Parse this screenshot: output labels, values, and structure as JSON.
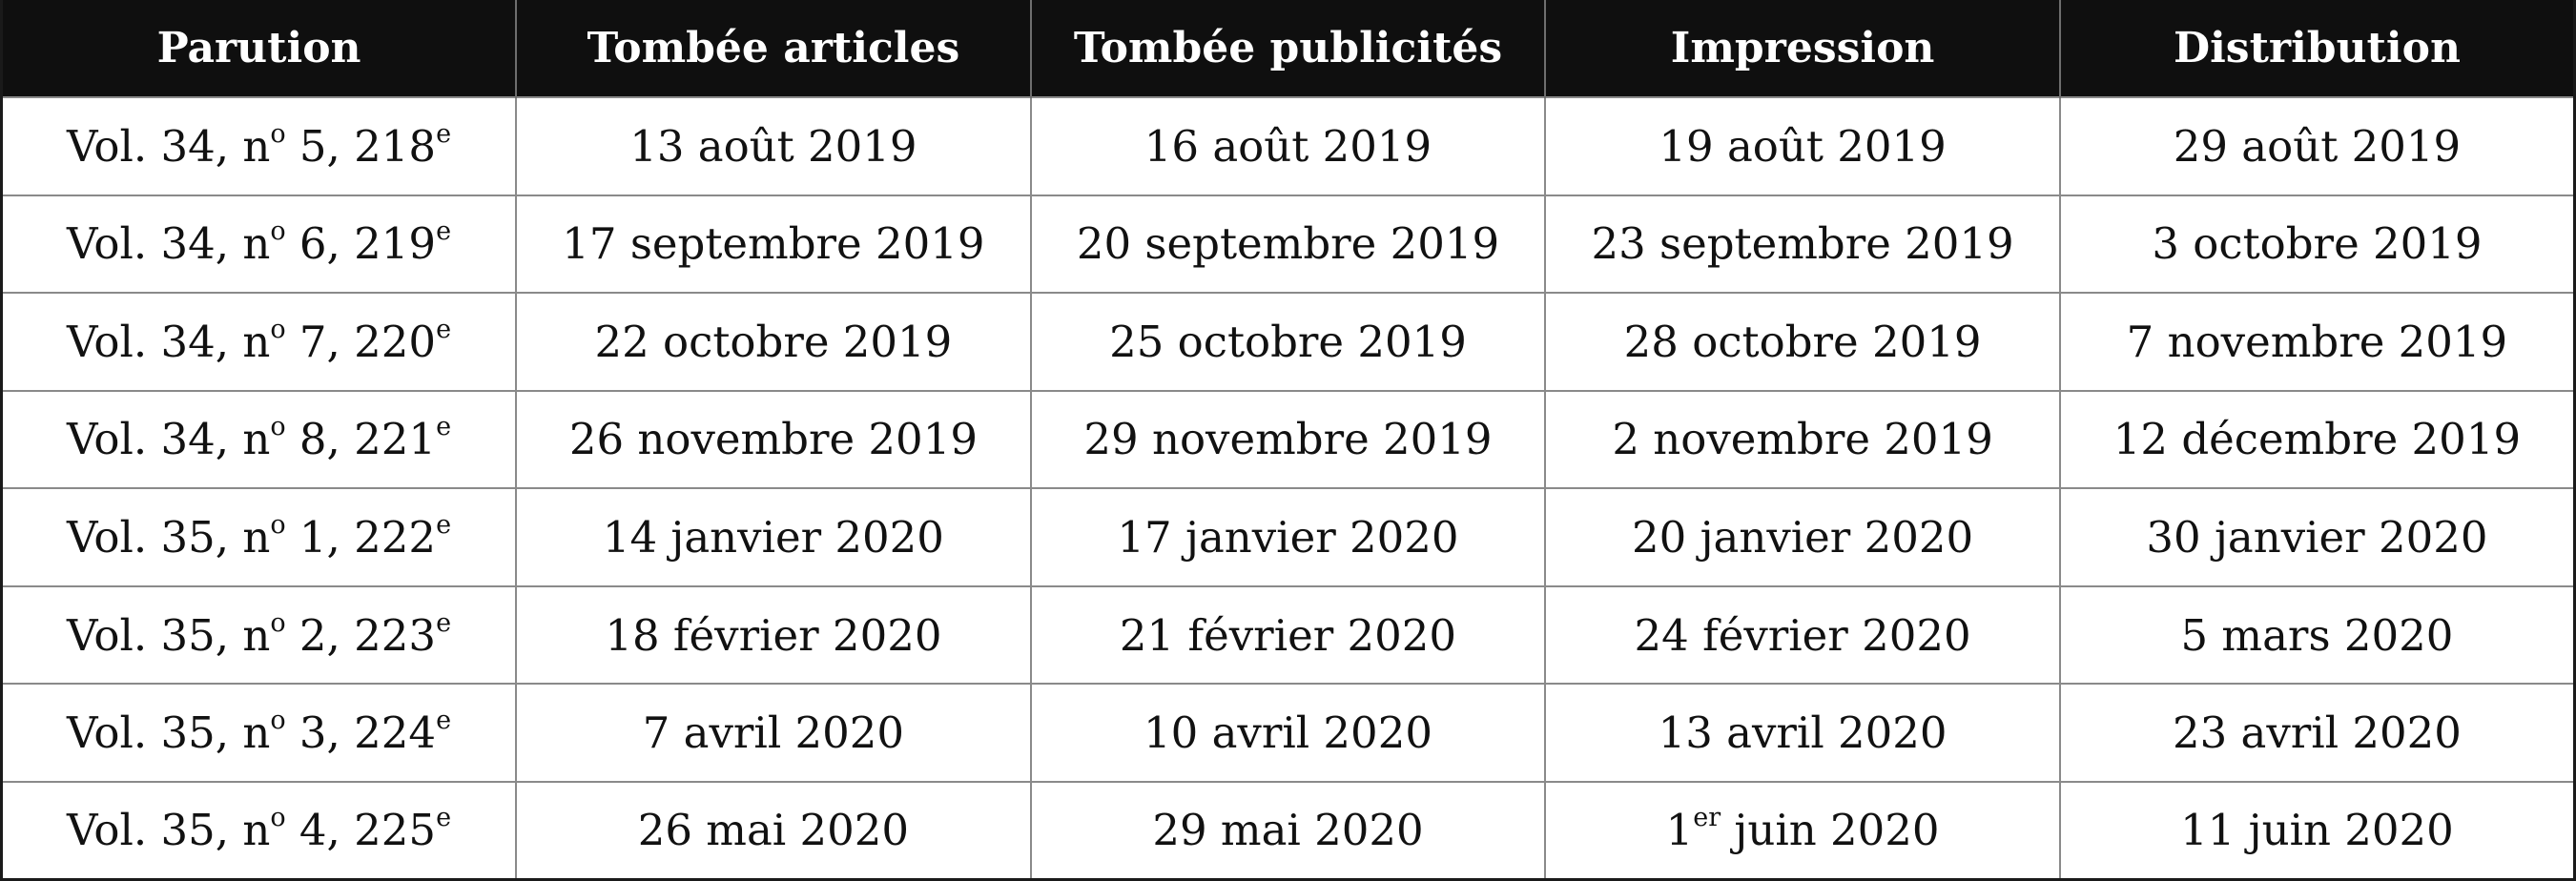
{
  "columns": [
    "Parution",
    "Tombée articles",
    "Tombée publicités",
    "Impression",
    "Distribution"
  ],
  "rows": [
    {
      "parution": {
        "vol": "Vol. 34, n",
        "num_sup": "o",
        "num": " 5, 218",
        "ed_sup": "e"
      },
      "tombee_articles": {
        "pre": "13 août 2019",
        "sup": "",
        "post": ""
      },
      "tombee_publicites": {
        "pre": "16 août 2019",
        "sup": "",
        "post": ""
      },
      "impression": {
        "pre": "19 août 2019",
        "sup": "",
        "post": ""
      },
      "distribution": {
        "pre": "29 août 2019",
        "sup": "",
        "post": ""
      }
    },
    {
      "parution": {
        "vol": "Vol. 34, n",
        "num_sup": "o",
        "num": " 6, 219",
        "ed_sup": "e"
      },
      "tombee_articles": {
        "pre": "17 septembre 2019",
        "sup": "",
        "post": ""
      },
      "tombee_publicites": {
        "pre": "20 septembre 2019",
        "sup": "",
        "post": ""
      },
      "impression": {
        "pre": "23 septembre 2019",
        "sup": "",
        "post": ""
      },
      "distribution": {
        "pre": "3 octobre 2019",
        "sup": "",
        "post": ""
      }
    },
    {
      "parution": {
        "vol": "Vol. 34, n",
        "num_sup": "o",
        "num": " 7, 220",
        "ed_sup": "e"
      },
      "tombee_articles": {
        "pre": "22 octobre 2019",
        "sup": "",
        "post": ""
      },
      "tombee_publicites": {
        "pre": "25 octobre 2019",
        "sup": "",
        "post": ""
      },
      "impression": {
        "pre": "28 octobre 2019",
        "sup": "",
        "post": ""
      },
      "distribution": {
        "pre": "7 novembre 2019",
        "sup": "",
        "post": ""
      }
    },
    {
      "parution": {
        "vol": "Vol. 34, n",
        "num_sup": "o",
        "num": " 8, 221",
        "ed_sup": "e"
      },
      "tombee_articles": {
        "pre": "26 novembre 2019",
        "sup": "",
        "post": ""
      },
      "tombee_publicites": {
        "pre": "29 novembre 2019",
        "sup": "",
        "post": ""
      },
      "impression": {
        "pre": "2 novembre 2019",
        "sup": "",
        "post": ""
      },
      "distribution": {
        "pre": "12 décembre 2019",
        "sup": "",
        "post": ""
      }
    },
    {
      "parution": {
        "vol": "Vol. 35, n",
        "num_sup": "o",
        "num": " 1, 222",
        "ed_sup": "e"
      },
      "tombee_articles": {
        "pre": "14 janvier 2020",
        "sup": "",
        "post": ""
      },
      "tombee_publicites": {
        "pre": "17 janvier 2020",
        "sup": "",
        "post": ""
      },
      "impression": {
        "pre": "20 janvier 2020",
        "sup": "",
        "post": ""
      },
      "distribution": {
        "pre": "30 janvier 2020",
        "sup": "",
        "post": ""
      }
    },
    {
      "parution": {
        "vol": "Vol. 35, n",
        "num_sup": "o",
        "num": " 2, 223",
        "ed_sup": "e"
      },
      "tombee_articles": {
        "pre": "18 février 2020",
        "sup": "",
        "post": ""
      },
      "tombee_publicites": {
        "pre": "21 février 2020",
        "sup": "",
        "post": ""
      },
      "impression": {
        "pre": "24 février 2020",
        "sup": "",
        "post": ""
      },
      "distribution": {
        "pre": "5 mars 2020",
        "sup": "",
        "post": ""
      }
    },
    {
      "parution": {
        "vol": "Vol. 35, n",
        "num_sup": "o",
        "num": " 3, 224",
        "ed_sup": "e"
      },
      "tombee_articles": {
        "pre": "7 avril 2020",
        "sup": "",
        "post": ""
      },
      "tombee_publicites": {
        "pre": "10 avril 2020",
        "sup": "",
        "post": ""
      },
      "impression": {
        "pre": "13 avril 2020",
        "sup": "",
        "post": ""
      },
      "distribution": {
        "pre": "23 avril 2020",
        "sup": "",
        "post": ""
      }
    },
    {
      "parution": {
        "vol": "Vol. 35, n",
        "num_sup": "o",
        "num": " 4, 225",
        "ed_sup": "e"
      },
      "tombee_articles": {
        "pre": "26 mai 2020",
        "sup": "",
        "post": ""
      },
      "tombee_publicites": {
        "pre": "29 mai 2020",
        "sup": "",
        "post": ""
      },
      "impression": {
        "pre": "1",
        "sup": "er",
        "post": " juin 2020"
      },
      "distribution": {
        "pre": "11 juin 2020",
        "sup": "",
        "post": ""
      }
    }
  ],
  "colors": {
    "header_background": "#0f0f0f",
    "header_text": "#ffffff",
    "cell_text": "#111111",
    "grid_lines": "#8a8a8a"
  }
}
